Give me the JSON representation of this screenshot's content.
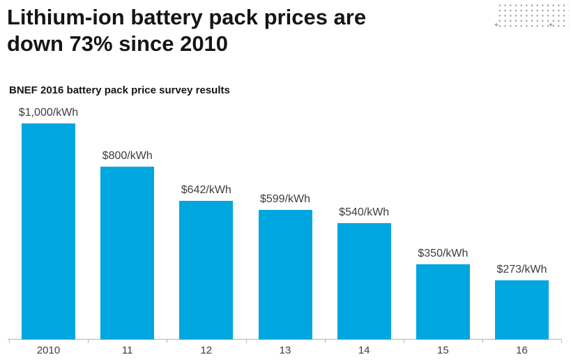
{
  "header": {
    "title_line1": "Lithium-ion battery pack prices are",
    "title_line2": "down 73% since 2010",
    "subtitle": "BNEF 2016 battery pack price survey results"
  },
  "decor": {
    "dot_color": "#9b9b9b",
    "plus_glyph": "+"
  },
  "chart_data": {
    "type": "bar",
    "title": "BNEF 2016 battery pack price survey results",
    "categories": [
      "2010",
      "11",
      "12",
      "13",
      "14",
      "15",
      "16"
    ],
    "values": [
      1000,
      800,
      642,
      599,
      540,
      350,
      273
    ],
    "value_labels": [
      "$1,000/kWh",
      "$800/kWh",
      "$642/kWh",
      "$599/kWh",
      "$540/kWh",
      "$350/kWh",
      "$273/kWh"
    ],
    "unit": "$/kWh",
    "xlabel": "",
    "ylabel": "",
    "ylim": [
      0,
      1000
    ],
    "grid": false,
    "legend": false,
    "bar_color": "#00a6e0",
    "axis_color": "#b3b3b3",
    "label_color": "#3d3d3d"
  }
}
